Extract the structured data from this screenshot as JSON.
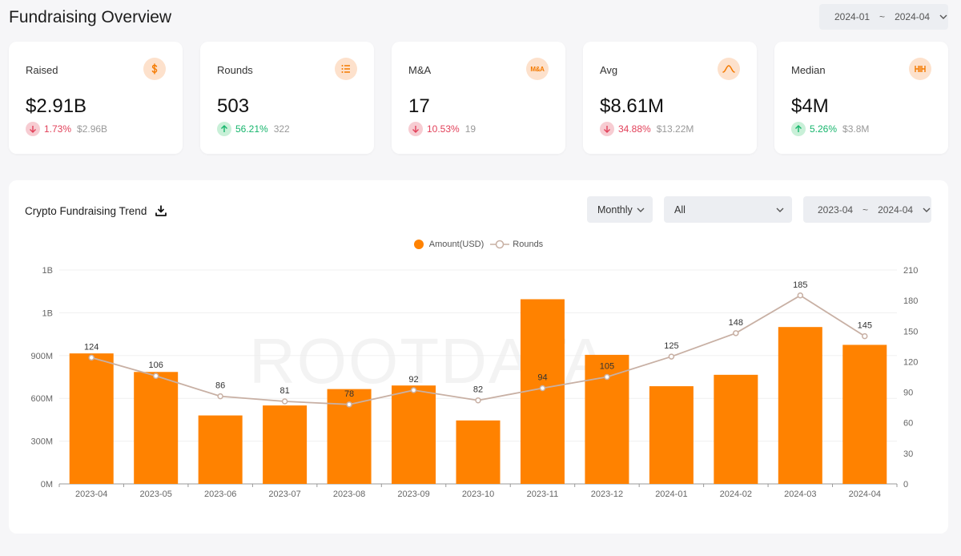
{
  "page": {
    "title": "Fundraising Overview"
  },
  "top_range": {
    "from": "2024-01",
    "sep": "~",
    "to": "2024-04"
  },
  "cards": [
    {
      "label": "Raised",
      "icon": "dollar-icon",
      "value": "$2.91B",
      "dir": "down",
      "pct": "1.73%",
      "prev": "$2.96B"
    },
    {
      "label": "Rounds",
      "icon": "list-icon",
      "value": "503",
      "dir": "up",
      "pct": "56.21%",
      "prev": "322"
    },
    {
      "label": "M&A",
      "icon": "mna-icon",
      "icon_text": "M&A",
      "value": "17",
      "dir": "down",
      "pct": "10.53%",
      "prev": "19"
    },
    {
      "label": "Avg",
      "icon": "bell-curve-icon",
      "value": "$8.61M",
      "dir": "down",
      "pct": "34.88%",
      "prev": "$13.22M"
    },
    {
      "label": "Median",
      "icon": "median-icon",
      "value": "$4M",
      "dir": "up",
      "pct": "5.26%",
      "prev": "$3.8M"
    }
  ],
  "panel": {
    "title": "Crypto Fundraising Trend",
    "granularity": "Monthly",
    "filter": "All",
    "range": {
      "from": "2023-04",
      "sep": "~",
      "to": "2024-04"
    },
    "watermark": "ROOTDATA"
  },
  "chart_data": {
    "type": "bar",
    "legend": [
      {
        "name": "Amount(USD)",
        "marker": "bar"
      },
      {
        "name": "Rounds",
        "marker": "line"
      }
    ],
    "categories": [
      "2023-04",
      "2023-05",
      "2023-06",
      "2023-07",
      "2023-08",
      "2023-09",
      "2023-10",
      "2023-11",
      "2023-12",
      "2024-01",
      "2024-02",
      "2024-03",
      "2024-04"
    ],
    "series": [
      {
        "name": "Amount(USD)",
        "type": "bar",
        "axis": "left",
        "color": "#ff8200",
        "values": [
          915,
          785,
          480,
          550,
          665,
          690,
          445,
          1295,
          905,
          685,
          765,
          1100,
          975
        ]
      },
      {
        "name": "Rounds",
        "type": "line",
        "axis": "right",
        "color": "#c8b0a4",
        "values": [
          124,
          106,
          86,
          81,
          78,
          92,
          82,
          94,
          105,
          125,
          148,
          185,
          145
        ]
      }
    ],
    "left_axis": {
      "ticks": [
        "0M",
        "300M",
        "600M",
        "900M",
        "1B",
        "1B"
      ],
      "unit": "M",
      "range": [
        0,
        1500
      ]
    },
    "right_axis": {
      "ticks": [
        "0",
        "30",
        "60",
        "90",
        "120",
        "150",
        "180",
        "210"
      ],
      "range": [
        0,
        210
      ]
    }
  }
}
